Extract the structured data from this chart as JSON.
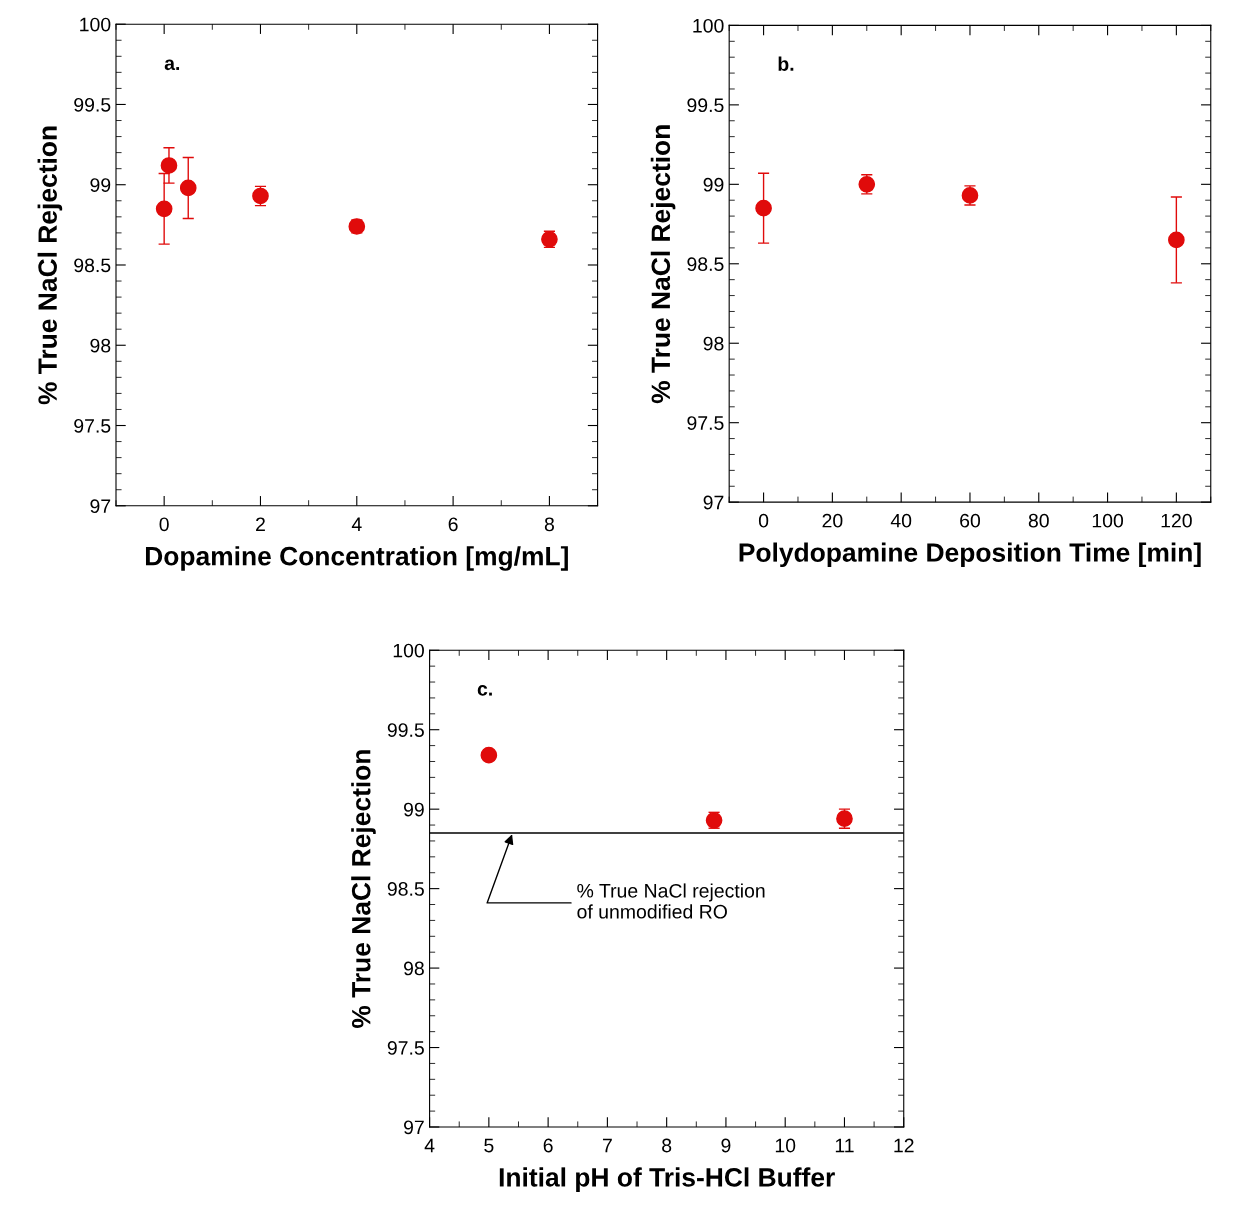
{
  "chart_data": [
    {
      "type": "scatter",
      "title": "a.",
      "xlabel": "Dopamine Concentration [mg/mL]",
      "ylabel": "% True NaCl Rejection",
      "x": [
        0,
        0.1,
        0.5,
        2,
        4,
        8
      ],
      "series": [
        {
          "color": "#e00b0b",
          "values": [
            98.85,
            99.12,
            98.98,
            98.93,
            98.74,
            98.66
          ],
          "errors": [
            0.22,
            0.11,
            0.19,
            0.06,
            0.04,
            0.05
          ]
        }
      ],
      "xlim": [
        -1,
        9
      ],
      "xticks": [
        0,
        2,
        4,
        6,
        8
      ],
      "ylim": [
        97,
        100
      ],
      "yticks": [
        97,
        97.5,
        98,
        98.5,
        99,
        99.5,
        100
      ],
      "marker": "circle",
      "grid": false,
      "legend": false
    },
    {
      "type": "scatter",
      "title": "b.",
      "xlabel": "Polydopamine Deposition Time [min]",
      "ylabel": "% True NaCl Rejection",
      "x": [
        0,
        30,
        60,
        120
      ],
      "series": [
        {
          "color": "#e00b0b",
          "values": [
            98.85,
            99.0,
            98.93,
            98.65
          ],
          "errors": [
            0.22,
            0.06,
            0.06,
            0.27
          ]
        }
      ],
      "xlim": [
        -10,
        130
      ],
      "xticks": [
        0,
        20,
        40,
        60,
        80,
        100,
        120
      ],
      "ylim": [
        97,
        100
      ],
      "yticks": [
        97,
        97.5,
        98,
        98.5,
        99,
        99.5,
        100
      ],
      "marker": "circle",
      "grid": false,
      "legend": false
    },
    {
      "type": "scatter",
      "title": "c.",
      "xlabel": "Initial pH of Tris-HCl Buffer",
      "ylabel": "% True NaCl Rejection",
      "x": [
        5,
        8.8,
        11
      ],
      "series": [
        {
          "color": "#e00b0b",
          "values": [
            99.34,
            98.93,
            98.94
          ],
          "errors": [
            null,
            0.05,
            0.06
          ]
        }
      ],
      "xlim": [
        4,
        12
      ],
      "xticks": [
        4,
        5,
        6,
        7,
        8,
        9,
        10,
        11,
        12
      ],
      "ylim": [
        97,
        100
      ],
      "yticks": [
        97,
        97.5,
        98,
        98.5,
        99,
        99.5,
        100
      ],
      "marker": "circle",
      "grid": false,
      "legend": false,
      "ref_lines": [
        {
          "axis": "y",
          "value": 98.85,
          "label": "% True NaCl rejection\nof unmodified RO",
          "color": "#000000"
        }
      ]
    }
  ]
}
